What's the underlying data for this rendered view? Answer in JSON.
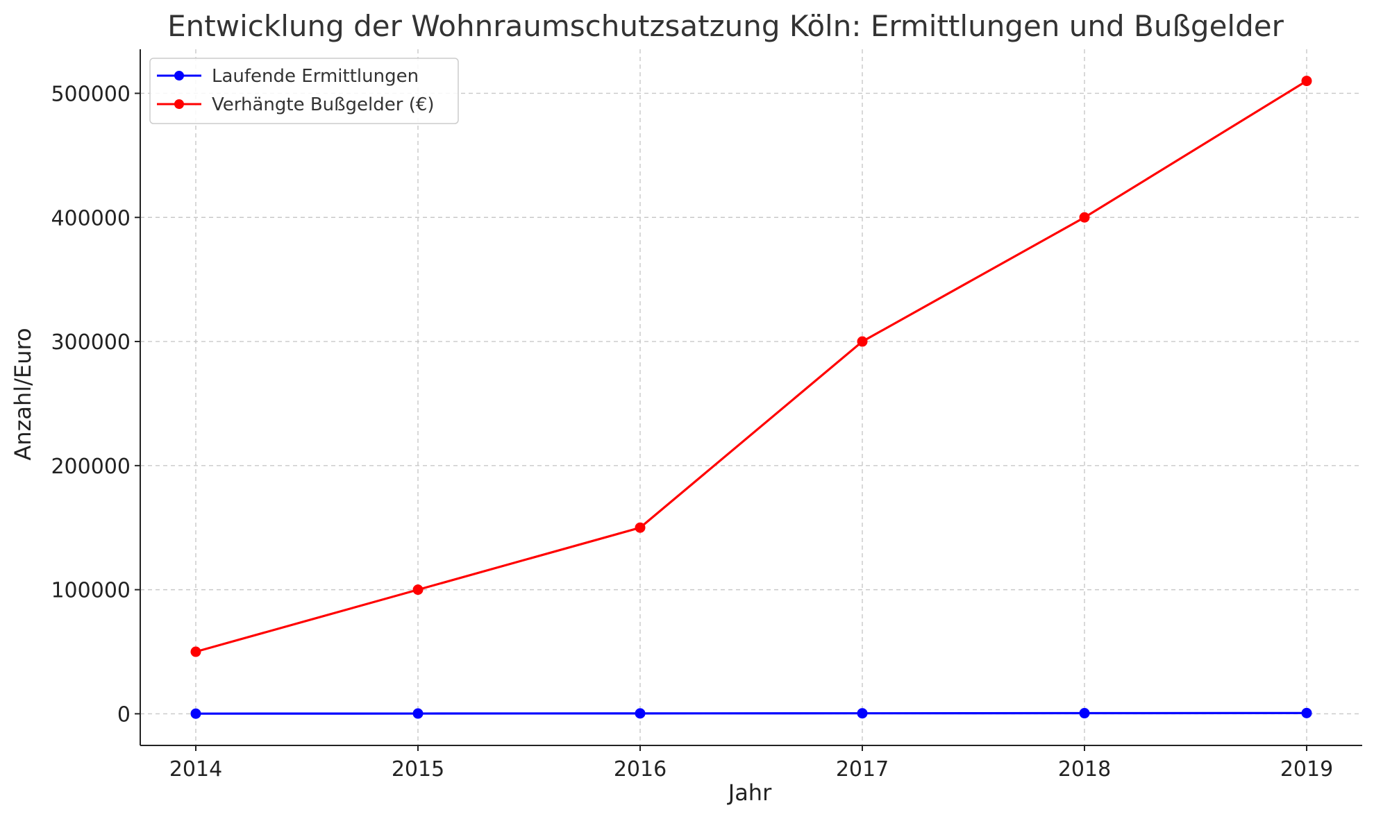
{
  "chart_data": {
    "type": "line",
    "title": "Entwicklung der Wohnraumschutzsatzung Köln: Ermittlungen und Bußgelder",
    "xlabel": "Jahr",
    "ylabel": "Anzahl/Euro",
    "x": [
      2014,
      2015,
      2016,
      2017,
      2018,
      2019
    ],
    "xticks": [
      "2014",
      "2015",
      "2016",
      "2017",
      "2018",
      "2019"
    ],
    "xlim": [
      2013.75,
      2019.25
    ],
    "ylim": [
      -25500,
      535500
    ],
    "yticks": [
      0,
      100000,
      200000,
      300000,
      400000,
      500000
    ],
    "ytick_labels": [
      "0",
      "100000",
      "200000",
      "300000",
      "400000",
      "500000"
    ],
    "grid": true,
    "legend_position": "upper-left",
    "series": [
      {
        "name": "Laufende Ermittlungen",
        "color": "#0000ff",
        "values": [
          120,
          200,
          300,
          400,
          500,
          600
        ]
      },
      {
        "name": "Verhängte Bußgelder (€)",
        "color": "#ff0000",
        "values": [
          50000,
          100000,
          150000,
          300000,
          400000,
          510000
        ]
      }
    ]
  }
}
